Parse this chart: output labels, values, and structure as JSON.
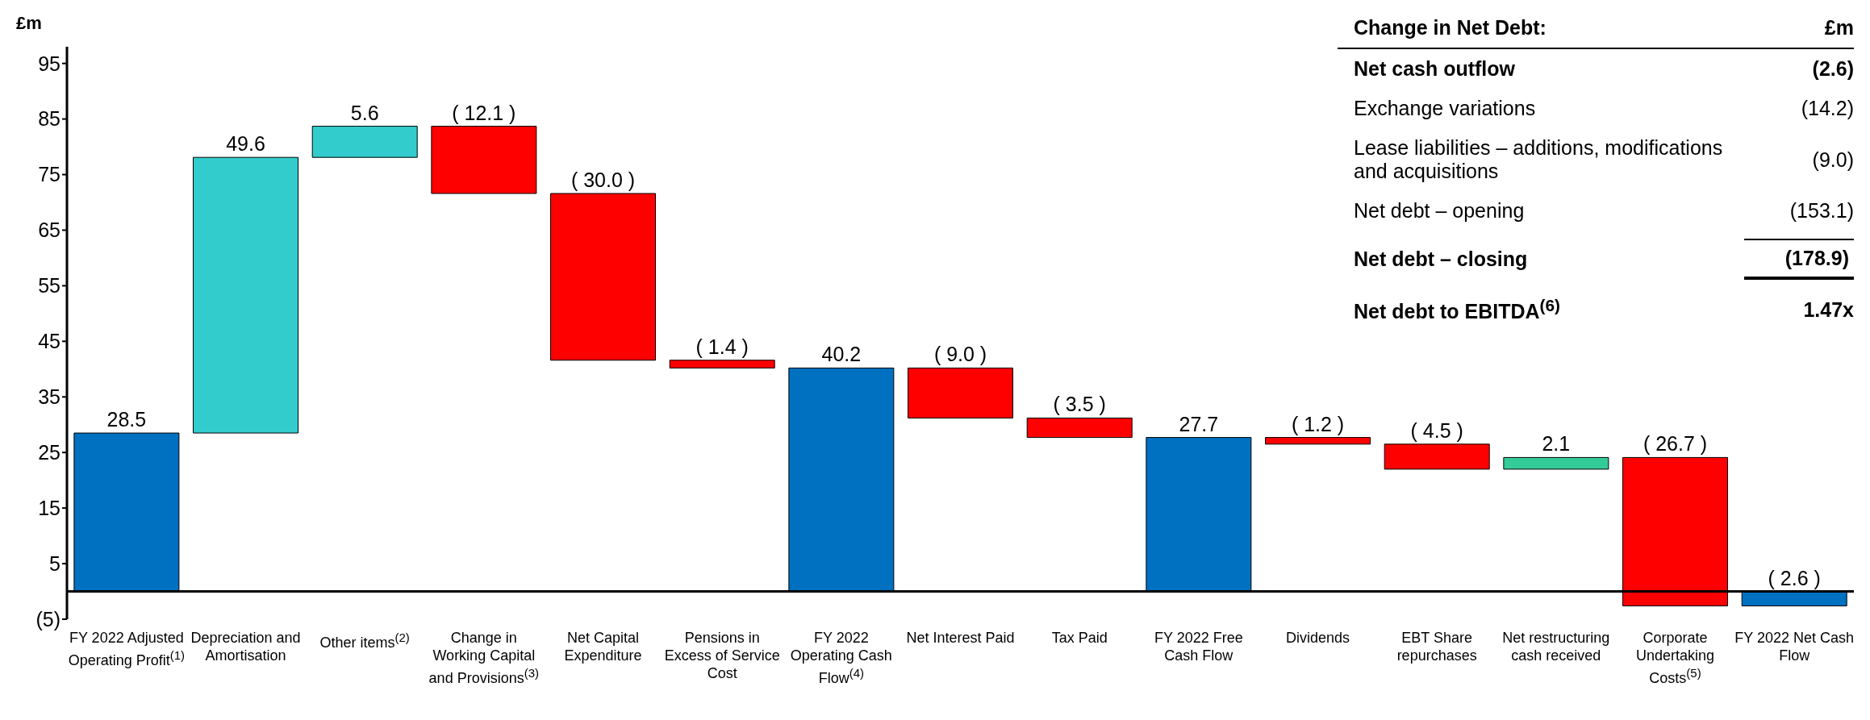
{
  "chart_data": {
    "type": "bar",
    "ylabel": "£m",
    "categories": [
      "FY 2022 Adjusted Operating Profit$^{(1)}$",
      "Depreciation and Amortisation",
      "Other items$^{(2)}$",
      "Change in Working Capital and Provisions$^{(3)}$",
      "Net Capital Expenditure",
      "Pensions in Excess of Service Cost",
      "FY 2022 Operating Cash Flow$^{(4)}$",
      "Net Interest Paid",
      "Tax Paid",
      "FY 2022 Free Cash Flow",
      "Dividends",
      "EBT Share repurchases",
      "Net restructuring cash received",
      "Corporate Undertaking Costs$^{(5)}$",
      "FY 2022 Net Cash Flow"
    ],
    "values": [
      28.5,
      49.6,
      5.6,
      -12.1,
      -30.0,
      -1.4,
      40.2,
      -9.0,
      -3.5,
      27.7,
      -1.2,
      -4.5,
      2.1,
      -26.7,
      -2.6
    ],
    "base": [
      0,
      28.5,
      78.1,
      83.7,
      71.6,
      41.6,
      0,
      40.2,
      31.2,
      0,
      27.7,
      26.5,
      22.0,
      24.1,
      0
    ],
    "colors": [
      "#0070c0",
      "#33cccc",
      "#33cccc",
      "#ff0000",
      "#ff0000",
      "#ff0000",
      "#0070c0",
      "#ff0000",
      "#ff0000",
      "#0070c0",
      "#ff0000",
      "#ff0000",
      "#33cc99",
      "#ff0000",
      "#0070c0"
    ],
    "value_labels": [
      "28.5",
      "49.6",
      "5.6",
      "( 12.1 )",
      "( 30.0 )",
      "( 1.4 )",
      "40.2",
      "( 9.0 )",
      "( 3.5 )",
      "27.7",
      "( 1.2 )",
      "( 4.5 )",
      "2.1",
      "( 26.7 )",
      "( 2.6 )"
    ],
    "ylim": [
      -5,
      98
    ],
    "yticks": [
      {
        "value": -5,
        "label": "(5)"
      },
      5,
      15,
      25,
      35,
      45,
      55,
      65,
      75,
      85,
      95
    ],
    "annotations": [
      "Change in Net Debt:",
      "£m",
      "Net cash outflow",
      "(2.6)",
      "Exchange variations",
      "(14.2)",
      "Lease liabilities – additions, modifications and acquisitions",
      "(9.0)",
      "Net debt – opening",
      "(153.1)",
      "Net debt – closing",
      "(178.9)",
      "Net debt to EBITDA$^{(6)}$",
      "1.47x"
    ]
  }
}
